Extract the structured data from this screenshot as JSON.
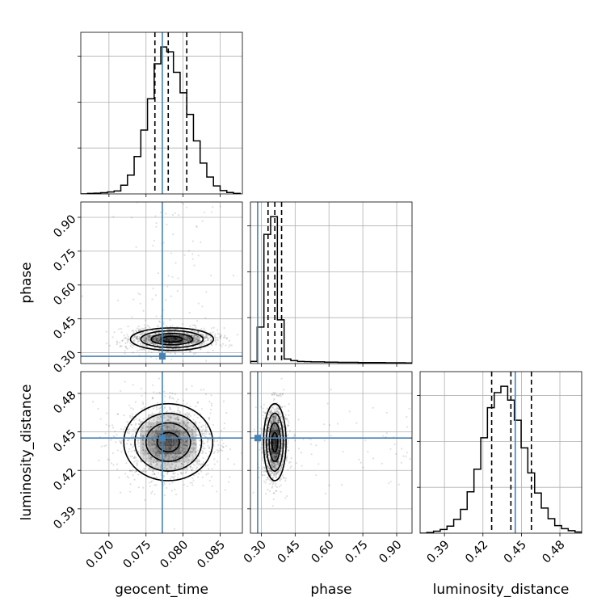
{
  "chart_data": {
    "type": "corner",
    "parameters": [
      "geocent_time",
      "phase",
      "luminosity_distance"
    ],
    "truth": {
      "geocent_time": 0.0772,
      "phase": 0.284,
      "luminosity_distance": 0.4452
    },
    "axes": {
      "geocent_time": {
        "range": [
          0.0662,
          0.088
        ],
        "ticks": [
          "0.070",
          "0.075",
          "0.080",
          "0.085"
        ],
        "tick_values": [
          0.07,
          0.075,
          0.08,
          0.085
        ]
      },
      "phase": {
        "range": [
          0.252,
          0.968
        ],
        "ticks": [
          "0.30",
          "0.45",
          "0.60",
          "0.75",
          "0.90"
        ],
        "tick_values": [
          0.3,
          0.45,
          0.6,
          0.75,
          0.9
        ]
      },
      "luminosity_distance": {
        "range": [
          0.371,
          0.497
        ],
        "ticks": [
          "0.39",
          "0.42",
          "0.45",
          "0.48"
        ],
        "tick_values": [
          0.39,
          0.42,
          0.45,
          0.48
        ]
      }
    },
    "histograms": [
      {
        "parameter": "geocent_time",
        "quantiles": [
          0.0762,
          0.078,
          0.0805
        ],
        "bins": [
          0.0662,
          0.0671,
          0.068,
          0.0689,
          0.0698,
          0.0707,
          0.0716,
          0.0725,
          0.0734,
          0.0743,
          0.0752,
          0.0761,
          0.077,
          0.0778,
          0.0787,
          0.0796,
          0.0805,
          0.0814,
          0.0823,
          0.0832,
          0.0841,
          0.085,
          0.0859,
          0.0868,
          0.0877
        ],
        "counts": [
          0,
          2,
          3,
          5,
          8,
          12,
          36,
          78,
          155,
          265,
          395,
          540,
          610,
          590,
          505,
          420,
          330,
          220,
          128,
          70,
          33,
          14,
          6,
          2
        ]
      },
      {
        "parameter": "phase",
        "quantiles": [
          0.33,
          0.36,
          0.39
        ],
        "bins": [
          0.252,
          0.2818,
          0.3117,
          0.3415,
          0.3713,
          0.4012,
          0.431,
          0.4608,
          0.4907,
          0.5205,
          0.5503,
          0.5802,
          0.61,
          0.6398,
          0.6697,
          0.6995,
          0.7293,
          0.7592,
          0.789,
          0.8188,
          0.8487,
          0.8785,
          0.9083,
          0.9382,
          0.968
        ],
        "counts": [
          10,
          175,
          620,
          705,
          210,
          22,
          14,
          10,
          9,
          8,
          8,
          7,
          7,
          6,
          6,
          6,
          5,
          5,
          5,
          5,
          4,
          4,
          4,
          3
        ]
      },
      {
        "parameter": "luminosity_distance",
        "quantiles": [
          0.4268,
          0.4418,
          0.4578
        ],
        "bins": [
          0.371,
          0.3762,
          0.3815,
          0.3867,
          0.392,
          0.3972,
          0.4025,
          0.4077,
          0.413,
          0.4183,
          0.4235,
          0.4288,
          0.434,
          0.4393,
          0.4445,
          0.4498,
          0.455,
          0.4603,
          0.4655,
          0.4708,
          0.476,
          0.4813,
          0.4865,
          0.4918,
          0.497
        ],
        "counts": [
          0,
          3,
          8,
          15,
          28,
          55,
          95,
          165,
          255,
          380,
          500,
          560,
          585,
          530,
          450,
          340,
          240,
          160,
          100,
          58,
          30,
          18,
          10,
          5
        ]
      }
    ],
    "pairs": [
      {
        "x": "geocent_time",
        "y": "phase",
        "center": [
          0.0785,
          0.36
        ],
        "spread": [
          0.0028,
          0.025
        ],
        "contour_levels": [
          0.5,
          1.0,
          1.5,
          2.0
        ]
      },
      {
        "x": "geocent_time",
        "y": "luminosity_distance",
        "center": [
          0.078,
          0.442
        ],
        "spread": [
          0.003,
          0.015
        ],
        "contour_levels": [
          0.5,
          1.0,
          1.5,
          2.0
        ]
      },
      {
        "x": "phase",
        "y": "luminosity_distance",
        "center": [
          0.36,
          0.442
        ],
        "spread": [
          0.025,
          0.015
        ],
        "contour_levels": [
          0.5,
          1.0,
          1.5,
          2.0
        ]
      }
    ]
  }
}
